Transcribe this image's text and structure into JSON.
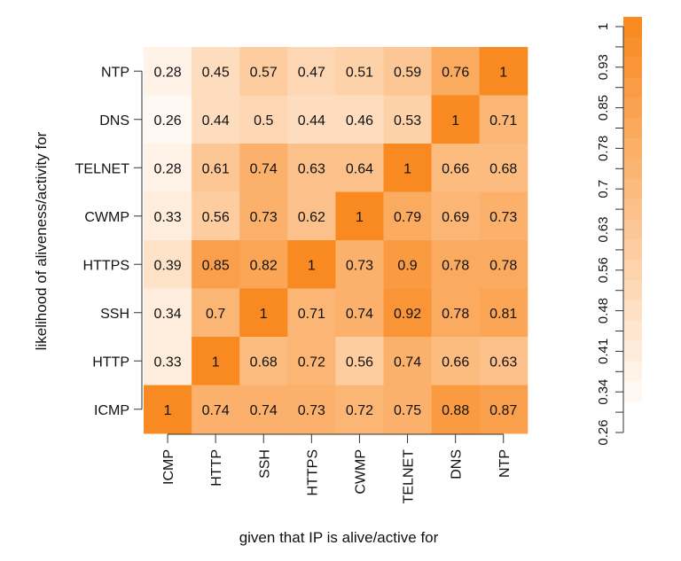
{
  "chart_data": {
    "type": "heatmap",
    "xlabel": "given that IP is alive/active for",
    "ylabel": "likelihood of aliveness/activity for",
    "x_categories": [
      "ICMP",
      "HTTP",
      "SSH",
      "HTTPS",
      "CWMP",
      "TELNET",
      "DNS",
      "NTP"
    ],
    "y_categories": [
      "NTP",
      "DNS",
      "TELNET",
      "CWMP",
      "HTTPS",
      "SSH",
      "HTTP",
      "ICMP"
    ],
    "values": [
      [
        0.28,
        0.45,
        0.57,
        0.47,
        0.51,
        0.59,
        0.76,
        1
      ],
      [
        0.26,
        0.44,
        0.5,
        0.44,
        0.46,
        0.53,
        1,
        0.71
      ],
      [
        0.28,
        0.61,
        0.74,
        0.63,
        0.64,
        1,
        0.66,
        0.68
      ],
      [
        0.33,
        0.56,
        0.73,
        0.62,
        1,
        0.79,
        0.69,
        0.73
      ],
      [
        0.39,
        0.85,
        0.82,
        1,
        0.73,
        0.9,
        0.78,
        0.78
      ],
      [
        0.34,
        0.7,
        1,
        0.71,
        0.74,
        0.92,
        0.78,
        0.81
      ],
      [
        0.33,
        1,
        0.68,
        0.72,
        0.56,
        0.74,
        0.66,
        0.63
      ],
      [
        1,
        0.74,
        0.74,
        0.73,
        0.72,
        0.75,
        0.88,
        0.87
      ]
    ],
    "value_labels": [
      [
        "0.28",
        "0.45",
        "0.57",
        "0.47",
        "0.51",
        "0.59",
        "0.76",
        "1"
      ],
      [
        "0.26",
        "0.44",
        "0.5",
        "0.44",
        "0.46",
        "0.53",
        "1",
        "0.71"
      ],
      [
        "0.28",
        "0.61",
        "0.74",
        "0.63",
        "0.64",
        "1",
        "0.66",
        "0.68"
      ],
      [
        "0.33",
        "0.56",
        "0.73",
        "0.62",
        "1",
        "0.79",
        "0.69",
        "0.73"
      ],
      [
        "0.39",
        "0.85",
        "0.82",
        "1",
        "0.73",
        "0.9",
        "0.78",
        "0.78"
      ],
      [
        "0.34",
        "0.7",
        "1",
        "0.71",
        "0.74",
        "0.92",
        "0.78",
        "0.81"
      ],
      [
        "0.33",
        "1",
        "0.68",
        "0.72",
        "0.56",
        "0.74",
        "0.66",
        "0.63"
      ],
      [
        "1",
        "0.74",
        "0.74",
        "0.73",
        "0.72",
        "0.75",
        "0.88",
        "0.87"
      ]
    ],
    "colorbar": {
      "tick_labels": [
        "1",
        "0.93",
        "0.85",
        "0.78",
        "0.7",
        "0.63",
        "0.56",
        "0.48",
        "0.41",
        "0.34",
        "0.26"
      ],
      "range": [
        0.26,
        1
      ],
      "low_color": "#fff8f2",
      "high_color": "#f98a22"
    },
    "grid": false,
    "legend": "right"
  }
}
